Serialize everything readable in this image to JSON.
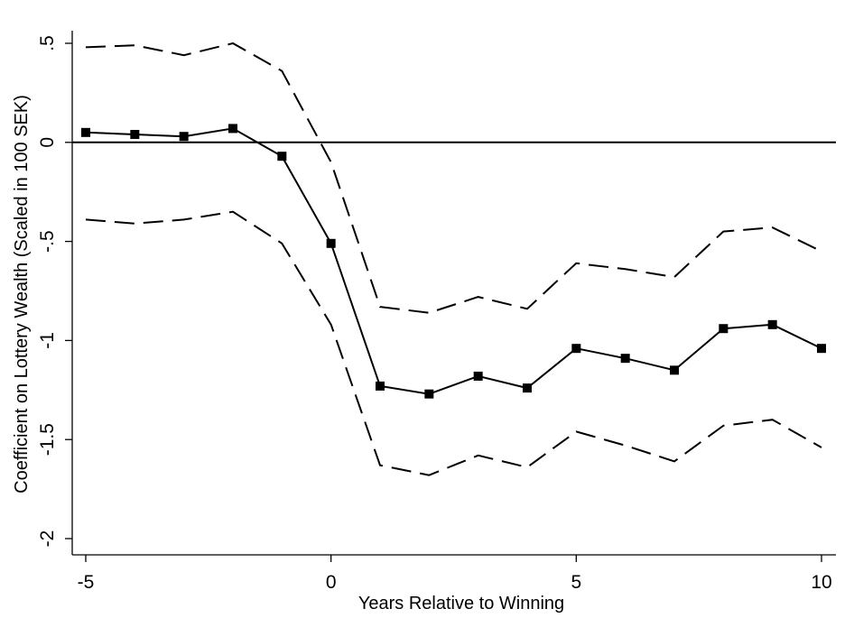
{
  "chart_data": {
    "type": "line",
    "title": "",
    "xlabel": "Years Relative to Winning",
    "ylabel": "Coefficient on Lottery Wealth (Scaled in 100 SEK)",
    "xlim": [
      -5.3,
      10.3
    ],
    "ylim": [
      -2.05,
      0.55
    ],
    "x_ticks": [
      -5,
      0,
      5,
      10
    ],
    "x_tick_labels": [
      "-5",
      "0",
      "5",
      "10"
    ],
    "y_ticks": [
      -2,
      -1.5,
      -1,
      -0.5,
      0,
      0.5
    ],
    "y_tick_labels": [
      "-2",
      "-1.5",
      "-1",
      "-.5",
      "0",
      ".5"
    ],
    "reference_line_y": 0,
    "grid": false,
    "legend": "none",
    "x": [
      -5,
      -4,
      -3,
      -2,
      -1,
      0,
      1,
      2,
      3,
      4,
      5,
      6,
      7,
      8,
      9,
      10
    ],
    "series": [
      {
        "style": "solid-square-markers",
        "values": [
          0.05,
          0.04,
          0.03,
          0.07,
          -0.07,
          -0.51,
          -1.23,
          -1.27,
          -1.18,
          -1.24,
          -1.04,
          -1.09,
          -1.15,
          -0.94,
          -0.92,
          -1.04
        ]
      },
      {
        "style": "dashed",
        "values": [
          0.48,
          0.49,
          0.44,
          0.5,
          0.36,
          -0.1,
          -0.83,
          -0.86,
          -0.78,
          -0.84,
          -0.61,
          -0.64,
          -0.68,
          -0.45,
          -0.43,
          -0.55
        ]
      },
      {
        "style": "dashed",
        "values": [
          -0.39,
          -0.41,
          -0.39,
          -0.35,
          -0.51,
          -0.92,
          -1.63,
          -1.68,
          -1.58,
          -1.64,
          -1.46,
          -1.53,
          -1.61,
          -1.43,
          -1.4,
          -1.54
        ]
      }
    ],
    "colors": {
      "line": "#000000",
      "axis": "#000000"
    }
  }
}
